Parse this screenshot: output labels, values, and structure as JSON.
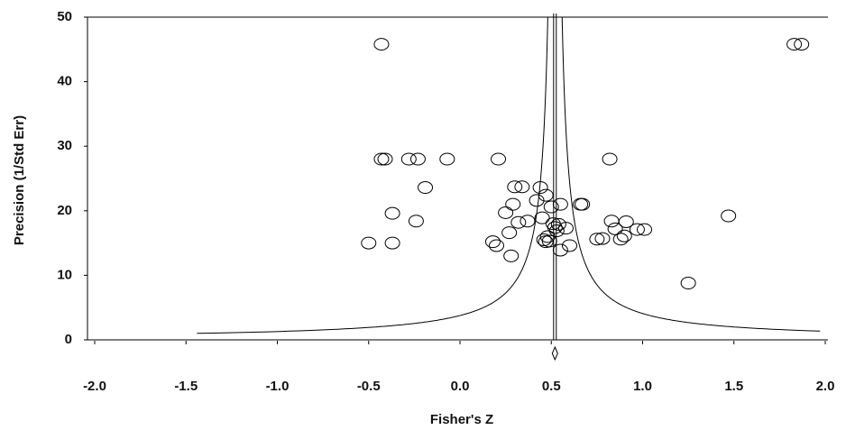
{
  "chart_data": {
    "type": "scatter",
    "x_label": "Fisher's Z",
    "y_label": "Precision (1/Std Err)",
    "xlim": [
      -2,
      2
    ],
    "ylim": [
      0,
      50
    ],
    "xticks": [
      {
        "value": -2,
        "label": "-2.0"
      },
      {
        "value": -1.5,
        "label": "-1.5"
      },
      {
        "value": -1,
        "label": "-1.0"
      },
      {
        "value": -0.5,
        "label": "-0.5"
      },
      {
        "value": 0,
        "label": "0.0"
      },
      {
        "value": 0.5,
        "label": "0.5"
      },
      {
        "value": 1,
        "label": "1.0"
      },
      {
        "value": 1.5,
        "label": "1.5"
      },
      {
        "value": 2,
        "label": "2.0"
      }
    ],
    "yticks": [
      0,
      10,
      20,
      30,
      40,
      50
    ],
    "pooled_effect": 0.52,
    "color": "#000000",
    "x": [
      -0.43,
      1.83,
      1.87,
      -0.43,
      -0.41,
      -0.28,
      -0.23,
      -0.07,
      0.21,
      0.82,
      -0.19,
      0.3,
      0.34,
      0.47,
      -0.5,
      -0.37,
      -0.37,
      -0.24,
      0.18,
      0.2,
      0.25,
      0.27,
      0.28,
      0.29,
      0.32,
      0.37,
      0.42,
      0.44,
      0.45,
      0.46,
      0.47,
      0.48,
      0.49,
      0.5,
      0.51,
      0.52,
      0.53,
      0.54,
      0.55,
      0.55,
      0.58,
      0.6,
      0.66,
      0.67,
      0.75,
      0.78,
      0.83,
      0.85,
      0.88,
      0.9,
      0.91,
      0.97,
      1.01,
      1.25,
      1.47
    ],
    "y": [
      45.8,
      45.8,
      45.8,
      28,
      28,
      28,
      28,
      28,
      28,
      28,
      23.6,
      23.7,
      23.7,
      22.4,
      15,
      15,
      19.6,
      18.4,
      15.2,
      14.6,
      19.7,
      16.6,
      13,
      21,
      18.2,
      18.4,
      21.6,
      23.6,
      18.9,
      15.5,
      15.2,
      16,
      15.3,
      20.6,
      18,
      17.4,
      16.9,
      17.9,
      21,
      13.9,
      17.3,
      14.6,
      21,
      21,
      15.6,
      15.7,
      18.4,
      17.2,
      15.6,
      16.1,
      18.3,
      17.1,
      17.1,
      8.8,
      19.2
    ]
  }
}
